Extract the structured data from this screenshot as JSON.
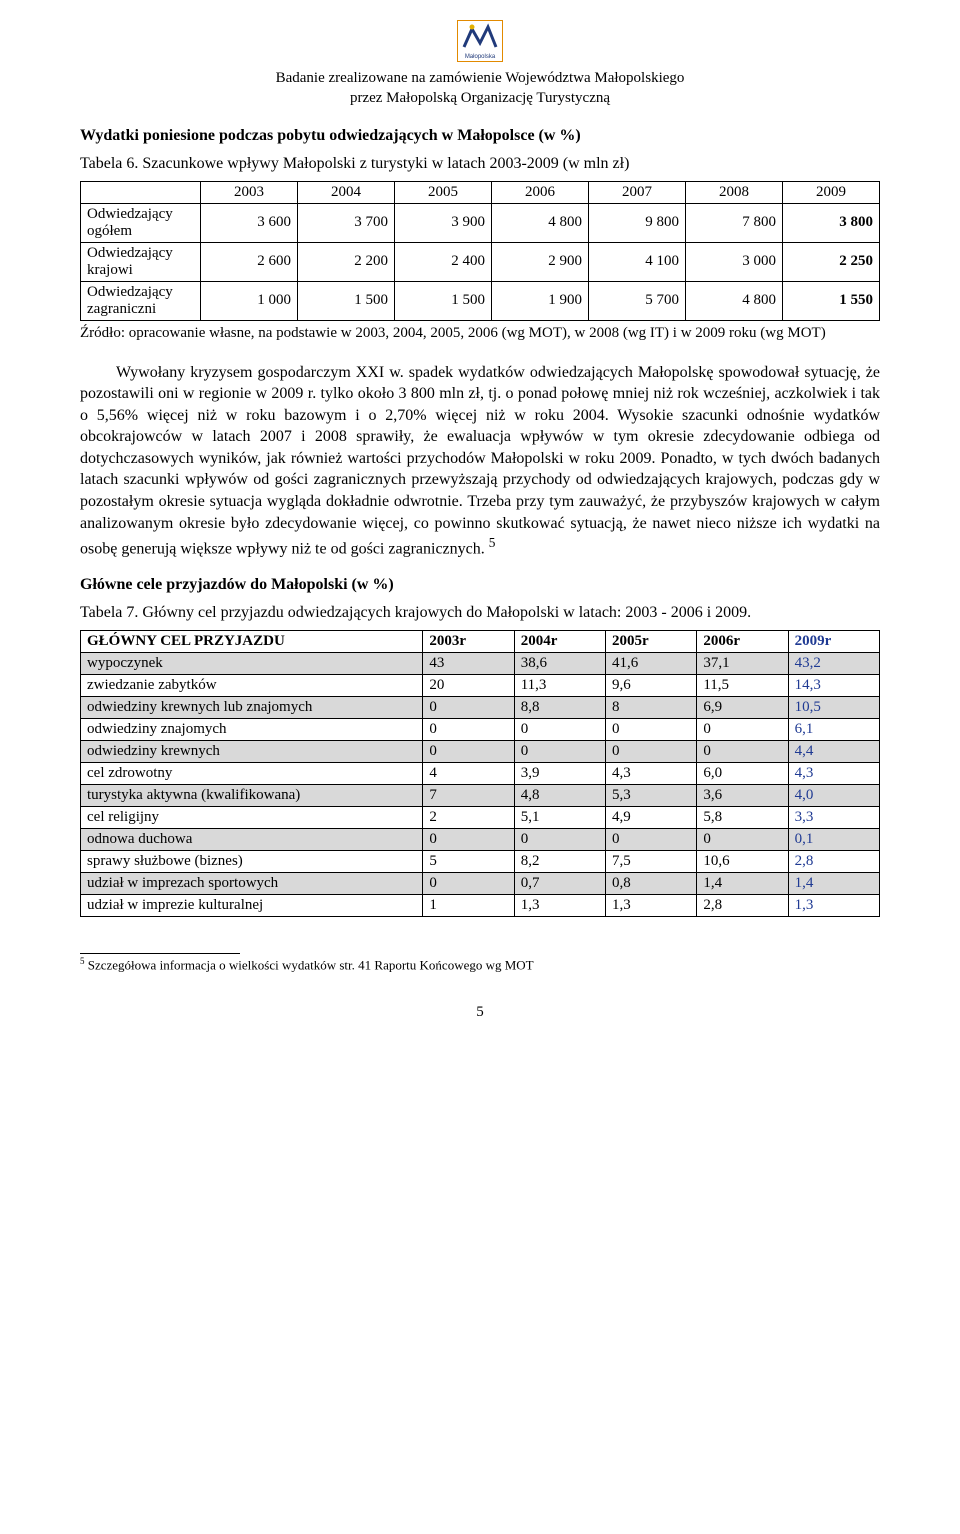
{
  "logo_label": "Małopolska",
  "header": {
    "line1": "Badanie zrealizowane na zamówienie Województwa Małopolskiego",
    "line2": "przez Małopolską Organizację Turystyczną"
  },
  "section1_title": "Wydatki poniesione podczas pobytu odwiedzających w Małopolsce  (w %)",
  "table6": {
    "caption": "Tabela 6. Szacunkowe wpływy Małopolski z turystyki w latach 2003-2009 (w mln zł)",
    "year_headers": [
      "2003",
      "2004",
      "2005",
      "2006",
      "2007",
      "2008",
      "2009"
    ],
    "rows": [
      {
        "label": "Odwiedzający ogółem",
        "vals": [
          "3 600",
          "3 700",
          "3 900",
          "4 800",
          "9 800",
          "7 800",
          "3 800"
        ]
      },
      {
        "label": "Odwiedzający krajowi",
        "vals": [
          "2 600",
          "2 200",
          "2 400",
          "2 900",
          "4 100",
          "3 000",
          "2 250"
        ]
      },
      {
        "label": "Odwiedzający zagraniczni",
        "vals": [
          "1 000",
          "1 500",
          "1 500",
          "1 900",
          "5 700",
          "4 800",
          "1 550"
        ]
      }
    ],
    "source": "Źródło: opracowanie własne, na podstawie w 2003, 2004, 2005, 2006 (wg MOT), w 2008 (wg IT) i w 2009 roku (wg MOT)"
  },
  "paragraph1": "Wywołany kryzysem gospodarczym XXI w. spadek wydatków odwiedzających Małopolskę spowodował sytuację, że pozostawili oni w regionie w 2009 r. tylko około 3 800 mln zł, tj. o ponad połowę mniej niż rok wcześniej, aczkolwiek i tak o 5,56% więcej niż w roku bazowym i o 2,70% więcej niż w roku 2004. Wysokie szacunki odnośnie wydatków obcokrajowców w latach 2007 i 2008 sprawiły, że ewaluacja wpływów w tym okresie zdecydowanie odbiega od dotychczasowych wyników, jak również wartości przychodów Małopolski w roku 2009. Ponadto, w tych dwóch badanych latach szacunki wpływów od gości zagranicznych przewyższają przychody od odwiedzających krajowych, podczas gdy w pozostałym okresie sytuacja wygląda dokładnie odwrotnie. Trzeba przy tym zauważyć, że przybyszów krajowych w całym analizowanym okresie było zdecydowanie więcej, co powinno skutkować sytuacją, że nawet nieco niższe ich wydatki na osobę generują większe wpływy niż te od gości zagranicznych.",
  "footnote_marker": "5",
  "section2_title": "Główne cele przyjazdów do Małopolski (w %)",
  "table7": {
    "caption": "Tabela 7. Główny cel przyjazdu odwiedzających krajowych do Małopolski w latach: 2003 - 2006 i 2009.",
    "headers": [
      "GŁÓWNY CEL PRZYJAZDU",
      "2003r",
      "2004r",
      "2005r",
      "2006r",
      "2009r"
    ],
    "rows": [
      {
        "label": "wypoczynek",
        "vals": [
          "43",
          "38,6",
          "41,6",
          "37,1",
          "43,2"
        ],
        "shade": true
      },
      {
        "label": "zwiedzanie zabytków",
        "vals": [
          "20",
          "11,3",
          "9,6",
          "11,5",
          "14,3"
        ],
        "shade": false
      },
      {
        "label": "odwiedziny krewnych lub znajomych",
        "vals": [
          "0",
          "8,8",
          "8",
          "6,9",
          "10,5"
        ],
        "shade": true
      },
      {
        "label": "odwiedziny znajomych",
        "vals": [
          "0",
          "0",
          "0",
          "0",
          "6,1"
        ],
        "shade": false
      },
      {
        "label": "odwiedziny krewnych",
        "vals": [
          "0",
          "0",
          "0",
          "0",
          "4,4"
        ],
        "shade": true
      },
      {
        "label": "cel zdrowotny",
        "vals": [
          "4",
          "3,9",
          "4,3",
          "6,0",
          "4,3"
        ],
        "shade": false
      },
      {
        "label": "turystyka aktywna (kwalifikowana)",
        "vals": [
          "7",
          "4,8",
          "5,3",
          "3,6",
          "4,0"
        ],
        "shade": true
      },
      {
        "label": "cel religijny",
        "vals": [
          "2",
          "5,1",
          "4,9",
          "5,8",
          "3,3"
        ],
        "shade": false
      },
      {
        "label": "odnowa duchowa",
        "vals": [
          "0",
          "0",
          "0",
          "0",
          "0,1"
        ],
        "shade": true
      },
      {
        "label": "sprawy służbowe (biznes)",
        "vals": [
          "5",
          "8,2",
          "7,5",
          "10,6",
          "2,8"
        ],
        "shade": false
      },
      {
        "label": "udział w imprezach sportowych",
        "vals": [
          "0",
          "0,7",
          "0,8",
          "1,4",
          "1,4"
        ],
        "shade": true
      },
      {
        "label": "udział w imprezie kulturalnej",
        "vals": [
          "1",
          "1,3",
          "1,3",
          "2,8",
          "1,3"
        ],
        "shade": false
      }
    ]
  },
  "footnote_text": "Szczegółowa informacja o wielkości wydatków str. 41 Raportu Końcowego wg MOT",
  "page_number": "5",
  "colors": {
    "blue_text": "#1f3a93",
    "shade_bg": "#d9d9d9",
    "logo_border": "#e28a00",
    "logo_fill": "#203a7a"
  }
}
